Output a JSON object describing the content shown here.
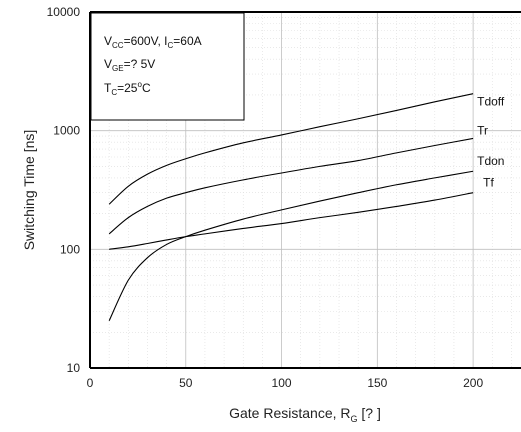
{
  "chart_data": {
    "type": "line",
    "xlabel_main": "Gate Resistance, R",
    "xlabel_sub": "G",
    "xlabel_unit": " [? ]",
    "ylabel": "Switching Time [ns]",
    "xlim": [
      0,
      225
    ],
    "ylim": [
      10,
      10000
    ],
    "yscale": "log",
    "x_ticks": [
      0,
      50,
      100,
      150,
      200
    ],
    "y_ticks": [
      10,
      100,
      1000,
      10000
    ],
    "x_tick_labels": [
      "0",
      "50",
      "100",
      "150",
      "200"
    ],
    "y_tick_labels": [
      "10",
      "100",
      "1000",
      "10000"
    ],
    "grid": true,
    "conditions": {
      "line1": {
        "a": "V",
        "a_sub": "CC",
        "b": "=600V, I",
        "b_sub": "C",
        "c": "=60A"
      },
      "line2": {
        "a": "V",
        "a_sub": "GE",
        "b": "=?  5V"
      },
      "line3": {
        "a": "T",
        "a_sub": "C",
        "b": "=25",
        "b_sup": "o",
        "c": "C"
      }
    },
    "series": [
      {
        "name": "Tdoff",
        "x": [
          10,
          20,
          30,
          40,
          50,
          60,
          80,
          100,
          120,
          140,
          160,
          180,
          200
        ],
        "values": [
          240,
          340,
          430,
          510,
          580,
          650,
          790,
          920,
          1080,
          1260,
          1480,
          1750,
          2050
        ]
      },
      {
        "name": "Tr",
        "x": [
          10,
          20,
          30,
          40,
          50,
          60,
          80,
          100,
          120,
          140,
          160,
          180,
          200
        ],
        "values": [
          135,
          185,
          230,
          270,
          300,
          330,
          385,
          440,
          500,
          560,
          650,
          750,
          860
        ]
      },
      {
        "name": "Tdon",
        "x": [
          10,
          20,
          30,
          40,
          50,
          60,
          80,
          100,
          120,
          140,
          160,
          180,
          200
        ],
        "values": [
          25,
          55,
          85,
          110,
          128,
          145,
          180,
          215,
          255,
          300,
          350,
          400,
          455
        ]
      },
      {
        "name": "Tf",
        "x": [
          10,
          20,
          30,
          40,
          50,
          60,
          80,
          100,
          120,
          140,
          160,
          180,
          200
        ],
        "values": [
          100,
          105,
          112,
          120,
          128,
          135,
          150,
          165,
          185,
          205,
          230,
          260,
          300
        ]
      }
    ]
  }
}
